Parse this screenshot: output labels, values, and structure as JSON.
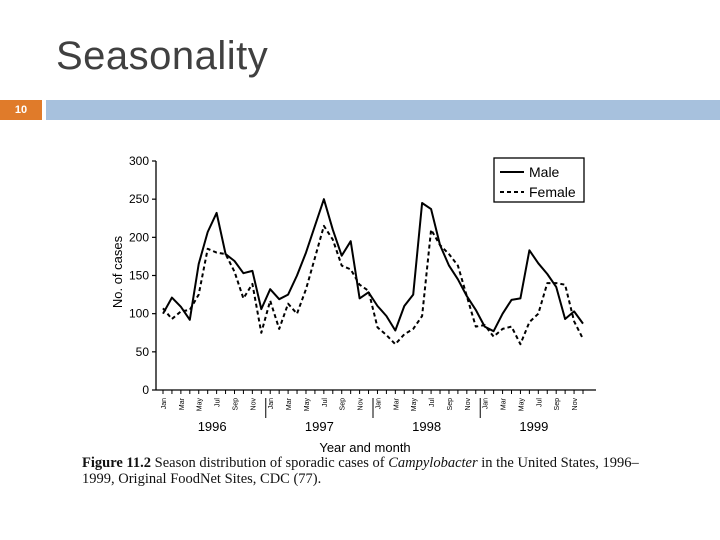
{
  "slide": {
    "title": "Seasonality",
    "number": "10"
  },
  "caption": {
    "figure_label": "Figure 11.2",
    "text_before": "Season distribution of sporadic cases of",
    "organism": "Campylobacter",
    "text_after": "in the United States, 1996–1999, Original FoodNet Sites, CDC (77)."
  },
  "chart_data": {
    "type": "line",
    "xlabel": "Year and month",
    "ylabel": "No. of cases",
    "ylim": [
      0,
      300
    ],
    "yticks": [
      0,
      50,
      100,
      150,
      200,
      250,
      300
    ],
    "grid": false,
    "legend_position": "top-right",
    "years": [
      "1996",
      "1997",
      "1998",
      "1999"
    ],
    "month_tick_labels": [
      "Jan",
      "Mar",
      "May",
      "Jul",
      "Sep",
      "Nov"
    ],
    "x": [
      "1996-01",
      "1996-02",
      "1996-03",
      "1996-04",
      "1996-05",
      "1996-06",
      "1996-07",
      "1996-08",
      "1996-09",
      "1996-10",
      "1996-11",
      "1996-12",
      "1997-01",
      "1997-02",
      "1997-03",
      "1997-04",
      "1997-05",
      "1997-06",
      "1997-07",
      "1997-08",
      "1997-09",
      "1997-10",
      "1997-11",
      "1997-12",
      "1998-01",
      "1998-02",
      "1998-03",
      "1998-04",
      "1998-05",
      "1998-06",
      "1998-07",
      "1998-08",
      "1998-09",
      "1998-10",
      "1998-11",
      "1998-12",
      "1999-01",
      "1999-02",
      "1999-03",
      "1999-04",
      "1999-05",
      "1999-06",
      "1999-07",
      "1999-08",
      "1999-09",
      "1999-10",
      "1999-11",
      "1999-12"
    ],
    "series": [
      {
        "name": "Male",
        "style": "solid",
        "color": "#000000",
        "values": [
          100,
          121,
          109,
          92,
          165,
          207,
          232,
          178,
          169,
          153,
          156,
          106,
          132,
          119,
          125,
          150,
          180,
          215,
          250,
          210,
          176,
          195,
          120,
          128,
          110,
          97,
          78,
          110,
          125,
          245,
          237,
          190,
          163,
          145,
          123,
          105,
          83,
          77,
          100,
          118,
          120,
          183,
          166,
          152,
          135,
          93,
          103,
          87
        ]
      },
      {
        "name": "Female",
        "style": "dashed",
        "color": "#000000",
        "values": [
          107,
          93,
          103,
          105,
          125,
          185,
          180,
          178,
          155,
          120,
          139,
          75,
          117,
          80,
          113,
          100,
          132,
          173,
          215,
          197,
          163,
          158,
          138,
          130,
          82,
          72,
          60,
          73,
          80,
          97,
          210,
          190,
          178,
          163,
          123,
          83,
          85,
          70,
          80,
          83,
          60,
          89,
          100,
          140,
          140,
          138,
          90,
          67
        ]
      }
    ]
  }
}
